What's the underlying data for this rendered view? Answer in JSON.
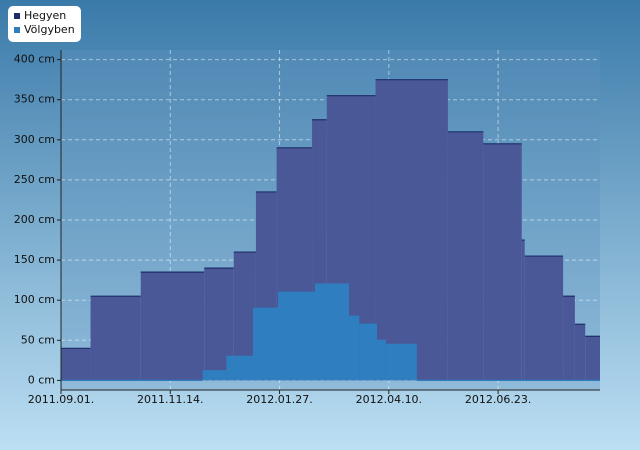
{
  "chart_data": {
    "type": "step-area",
    "series": [
      {
        "name": "Hegyen",
        "color": "#4b5898",
        "line_color": "#1c2c6c",
        "x": [
          "2011-09-01",
          "2011-09-21",
          "2011-10-25",
          "2011-12-07",
          "2011-12-27",
          "2012-01-11",
          "2012-01-25",
          "2012-02-18",
          "2012-02-28",
          "2012-04-01",
          "2012-05-20",
          "2012-06-13",
          "2012-07-09",
          "2012-07-11",
          "2012-08-06",
          "2012-08-14",
          "2012-08-21"
        ],
        "values": [
          40,
          105,
          135,
          140,
          160,
          235,
          290,
          325,
          355,
          375,
          310,
          295,
          175,
          155,
          105,
          70,
          55
        ]
      },
      {
        "name": "Völgyben",
        "color": "#2f7ec0",
        "line_color": "#2f7ec0",
        "x": [
          "2011-09-01",
          "2011-12-06",
          "2011-12-22",
          "2012-01-09",
          "2012-01-26",
          "2012-02-20",
          "2012-03-14",
          "2012-03-21",
          "2012-04-02",
          "2012-04-08",
          "2012-04-29"
        ],
        "values": [
          0,
          12,
          30,
          90,
          110,
          120,
          80,
          70,
          50,
          45,
          0
        ]
      }
    ],
    "xlim": [
      "2011-09-01",
      "2012-08-31"
    ],
    "xticks": [
      {
        "value": "2011-09-01",
        "label": "2011.09.01."
      },
      {
        "value": "2011-11-14",
        "label": "2011.11.14."
      },
      {
        "value": "2012-01-27",
        "label": "2012.01.27."
      },
      {
        "value": "2012-04-10",
        "label": "2012.04.10."
      },
      {
        "value": "2012-06-23",
        "label": "2012.06.23."
      }
    ],
    "ylim": [
      -12,
      412
    ],
    "yticks": [
      {
        "value": 0,
        "label": "0 cm"
      },
      {
        "value": 50,
        "label": "50 cm"
      },
      {
        "value": 100,
        "label": "100 cm"
      },
      {
        "value": 150,
        "label": "150 cm"
      },
      {
        "value": 200,
        "label": "200 cm"
      },
      {
        "value": 250,
        "label": "250 cm"
      },
      {
        "value": 300,
        "label": "300 cm"
      },
      {
        "value": 350,
        "label": "350 cm"
      },
      {
        "value": 400,
        "label": "400 cm"
      }
    ],
    "grid": true,
    "legend": "top-left"
  }
}
